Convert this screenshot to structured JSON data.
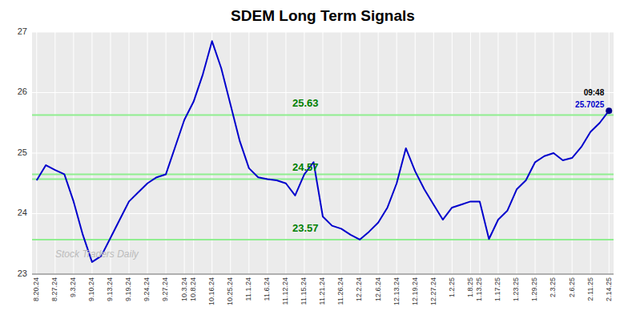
{
  "chart_data": {
    "type": "line",
    "title": "SDEM Long Term Signals",
    "categories": [
      "8.20.24",
      null,
      "8.27.24",
      null,
      "9.3.24",
      null,
      "9.10.24",
      null,
      "9.13.24",
      null,
      "9.19.24",
      null,
      "9.24.24",
      null,
      "9.27.24",
      null,
      "10.3.24",
      "10.8.24",
      null,
      "10.16.24",
      null,
      "10.25.24",
      null,
      "11.1.24",
      null,
      "11.6.24",
      null,
      "11.12.24",
      null,
      "11.15.24",
      null,
      "11.21.24",
      null,
      "11.26.24",
      null,
      "12.2.24",
      null,
      "12.6.24",
      null,
      "12.13.24",
      null,
      "12.19.24",
      null,
      "12.27.24",
      null,
      "1.2.25",
      null,
      "1.8.25",
      "1.13.25",
      null,
      "1.17.25",
      null,
      "1.23.25",
      null,
      "1.29.25",
      null,
      "2.3.25",
      null,
      "2.6.25",
      null,
      "2.11.25",
      null,
      "2.14.25"
    ],
    "series": [
      {
        "color": "#0000cc",
        "values": [
          24.55,
          24.8,
          24.72,
          24.65,
          24.2,
          23.65,
          23.2,
          23.3,
          23.6,
          23.9,
          24.2,
          24.35,
          24.5,
          24.6,
          24.65,
          25.1,
          25.55,
          25.85,
          26.3,
          26.85,
          26.4,
          25.8,
          25.2,
          24.75,
          24.6,
          24.57,
          24.55,
          24.5,
          24.3,
          24.65,
          24.85,
          23.95,
          23.8,
          23.75,
          23.65,
          23.57,
          23.7,
          23.85,
          24.1,
          24.5,
          25.08,
          24.7,
          24.4,
          24.15,
          23.9,
          24.1,
          24.15,
          24.2,
          24.2,
          23.58,
          23.9,
          24.05,
          24.4,
          24.55,
          24.85,
          24.95,
          25.0,
          24.88,
          24.92,
          25.1,
          25.35,
          25.5,
          25.7
        ]
      }
    ],
    "ylim": [
      23.0,
      27.0
    ],
    "yticks": [
      23,
      24,
      25,
      26,
      27
    ],
    "grid": true,
    "plot_background": "#ebebeb",
    "reference_lines": [
      {
        "value": 25.63,
        "label": "25.63"
      },
      {
        "value": 24.57,
        "label": "24.57"
      },
      {
        "value": 23.57,
        "label": "23.57"
      },
      {
        "value": 24.65
      }
    ],
    "reference_line_color": "#90ee90",
    "reference_label_color": "#008000",
    "last_point": {
      "color": "#00008b",
      "time_label": "09:48",
      "time_color": "#000000",
      "price_label": "25.7025",
      "price_color": "#0000cc"
    },
    "watermark": {
      "text": "Stock Traders Daily",
      "color": "#bbbbbb"
    }
  }
}
